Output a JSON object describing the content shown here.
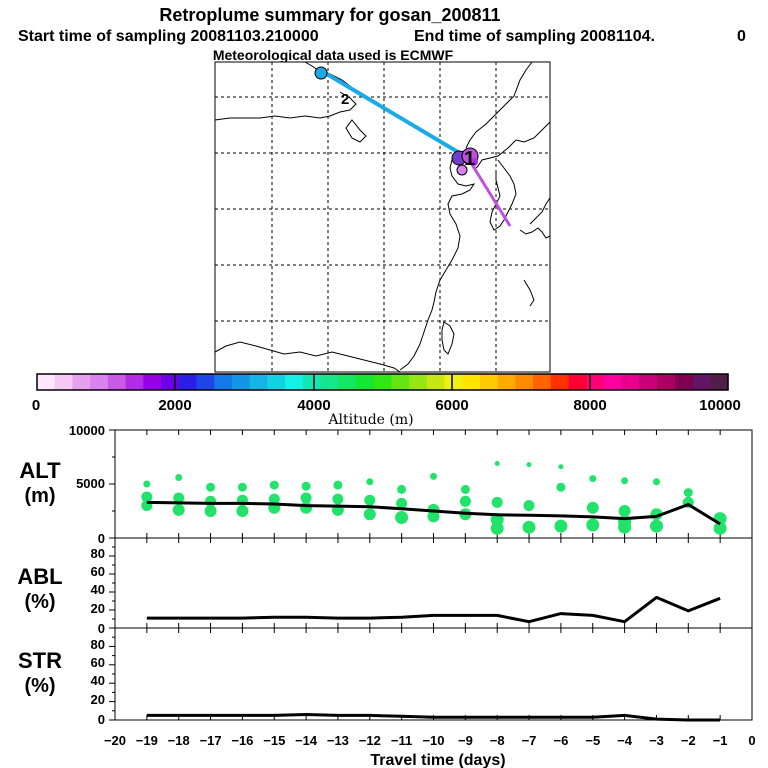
{
  "header": {
    "title": "Retroplume summary for gosan_200811",
    "start_text": "Start time of sampling 20081103.210000",
    "end_text": "End time of sampling 20081104.",
    "end_digit": "0",
    "met_text": "Meteorological data used is ECMWF"
  },
  "map": {
    "labels": [
      "1",
      "2"
    ],
    "colors": {
      "early": "#1aaae6",
      "late": "#c050e0",
      "land": "#000000"
    }
  },
  "colorbar": {
    "title": "Altitude (m)",
    "ticks": [
      "0",
      "2000",
      "4000",
      "6000",
      "8000",
      "10000"
    ],
    "colors": [
      "#ffe6ff",
      "#f5c8f5",
      "#e6a0f0",
      "#dc82f0",
      "#c85ae6",
      "#b42de6",
      "#9600e6",
      "#6e00e6",
      "#2d1ee6",
      "#1e46e6",
      "#1478e6",
      "#1496e6",
      "#14b4e6",
      "#14d2e6",
      "#14f0e6",
      "#14e6b4",
      "#14e68c",
      "#14e664",
      "#14e632",
      "#32e614",
      "#64e614",
      "#96e614",
      "#c8e614",
      "#f0f014",
      "#ffe600",
      "#ffc800",
      "#ffaa00",
      "#ff8c00",
      "#ff6400",
      "#ff3200",
      "#ff0032",
      "#ff0078",
      "#ff00a0",
      "#e6008c",
      "#c80078",
      "#aa0064",
      "#820050",
      "#641464",
      "#501e46"
    ]
  },
  "chart_data": [
    {
      "type": "line",
      "name": "ALT",
      "label": "ALT",
      "unit": "(m)",
      "x": [
        -19,
        -18,
        -17,
        -16,
        -15,
        -14,
        -13,
        -12,
        -11,
        -10,
        -9,
        -8,
        -7,
        -6,
        -5,
        -4,
        -3,
        -2,
        -1
      ],
      "values": [
        3300,
        3250,
        3200,
        3200,
        3150,
        3000,
        2950,
        2900,
        2700,
        2500,
        2300,
        2150,
        2100,
        2050,
        1950,
        1800,
        2000,
        3100,
        1300
      ],
      "ylim": [
        0,
        10000
      ],
      "yticks": [
        "0",
        "5000",
        "10000"
      ],
      "xlim": [
        -20,
        0
      ],
      "scatter": [
        {
          "x": -19,
          "y": 5000
        },
        {
          "x": -19,
          "y": 3800
        },
        {
          "x": -19,
          "y": 3000
        },
        {
          "x": -18,
          "y": 5600
        },
        {
          "x": -18,
          "y": 3700
        },
        {
          "x": -18,
          "y": 2600
        },
        {
          "x": -17,
          "y": 4700
        },
        {
          "x": -17,
          "y": 3400
        },
        {
          "x": -17,
          "y": 2500
        },
        {
          "x": -16,
          "y": 4700
        },
        {
          "x": -16,
          "y": 3500
        },
        {
          "x": -16,
          "y": 2500
        },
        {
          "x": -15,
          "y": 4900
        },
        {
          "x": -15,
          "y": 3600
        },
        {
          "x": -15,
          "y": 2800
        },
        {
          "x": -14,
          "y": 4800
        },
        {
          "x": -14,
          "y": 3700
        },
        {
          "x": -14,
          "y": 2800
        },
        {
          "x": -13,
          "y": 4900
        },
        {
          "x": -13,
          "y": 3600
        },
        {
          "x": -13,
          "y": 2600
        },
        {
          "x": -12,
          "y": 5200
        },
        {
          "x": -12,
          "y": 3500
        },
        {
          "x": -12,
          "y": 2200
        },
        {
          "x": -11,
          "y": 4500
        },
        {
          "x": -11,
          "y": 3200
        },
        {
          "x": -11,
          "y": 1900
        },
        {
          "x": -10,
          "y": 5700
        },
        {
          "x": -10,
          "y": 2600
        },
        {
          "x": -10,
          "y": 2000
        },
        {
          "x": -9,
          "y": 4500
        },
        {
          "x": -9,
          "y": 3400
        },
        {
          "x": -9,
          "y": 2200
        },
        {
          "x": -8,
          "y": 6900
        },
        {
          "x": -8,
          "y": 3300
        },
        {
          "x": -8,
          "y": 1700
        },
        {
          "x": -8,
          "y": 900
        },
        {
          "x": -7,
          "y": 6800
        },
        {
          "x": -7,
          "y": 3000
        },
        {
          "x": -7,
          "y": 1000
        },
        {
          "x": -6,
          "y": 6600
        },
        {
          "x": -6,
          "y": 4700
        },
        {
          "x": -6,
          "y": 1100
        },
        {
          "x": -5,
          "y": 5500
        },
        {
          "x": -5,
          "y": 2800
        },
        {
          "x": -5,
          "y": 1200
        },
        {
          "x": -4,
          "y": 5300
        },
        {
          "x": -4,
          "y": 2500
        },
        {
          "x": -4,
          "y": 1500
        },
        {
          "x": -4,
          "y": 1000
        },
        {
          "x": -3,
          "y": 5200
        },
        {
          "x": -3,
          "y": 2200
        },
        {
          "x": -3,
          "y": 1100
        },
        {
          "x": -2,
          "y": 4200
        },
        {
          "x": -2,
          "y": 3300
        },
        {
          "x": -1,
          "y": 1800
        },
        {
          "x": -1,
          "y": 900
        }
      ]
    },
    {
      "type": "line",
      "name": "ABL",
      "label": "ABL",
      "unit": "(%)",
      "x": [
        -19,
        -18,
        -17,
        -16,
        -15,
        -14,
        -13,
        -12,
        -11,
        -10,
        -9,
        -8,
        -7,
        -6,
        -5,
        -4,
        -3,
        -2,
        -1
      ],
      "values": [
        11,
        11,
        11,
        11,
        12,
        12,
        11,
        11,
        12,
        14,
        14,
        14,
        7,
        16,
        14,
        7,
        34,
        19,
        33
      ],
      "ylim": [
        0,
        100
      ],
      "yticks": [
        "0",
        "20",
        "40",
        "60",
        "80"
      ],
      "xlim": [
        -20,
        0
      ]
    },
    {
      "type": "line",
      "name": "STR",
      "label": "STR",
      "unit": "(%)",
      "x": [
        -19,
        -18,
        -17,
        -16,
        -15,
        -14,
        -13,
        -12,
        -11,
        -10,
        -9,
        -8,
        -7,
        -6,
        -5,
        -4,
        -3,
        -2,
        -1
      ],
      "values": [
        5,
        5,
        5,
        5,
        5,
        6,
        5,
        5,
        4,
        3,
        3,
        3,
        3,
        3,
        3,
        5,
        1,
        0,
        0
      ],
      "ylim": [
        0,
        100
      ],
      "yticks": [
        "0",
        "20",
        "40",
        "60",
        "80"
      ],
      "xlim": [
        -20,
        0
      ],
      "xlabel": "Travel time (days)",
      "xticks": [
        "−20",
        "−19",
        "−18",
        "−17",
        "−16",
        "−15",
        "−14",
        "−13",
        "−12",
        "−11",
        "−10",
        "−9",
        "−8",
        "−7",
        "−6",
        "−5",
        "−4",
        "−3",
        "−2",
        "−1",
        "0"
      ]
    }
  ]
}
